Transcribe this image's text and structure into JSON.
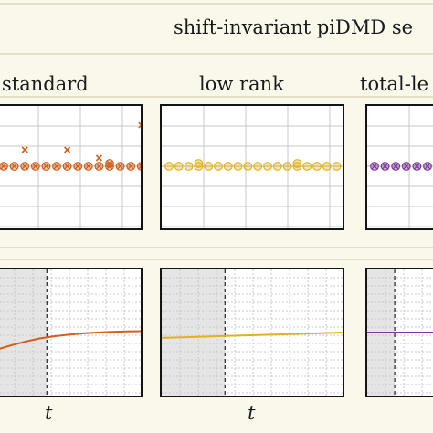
{
  "figure": {
    "title": "shift-invariant piDMD se",
    "columns": [
      "standard",
      "low rank",
      "total-le"
    ],
    "time_label": "t"
  },
  "colors": {
    "background": "#faf8ea",
    "divider": "#e4e0c8",
    "standard": "#d35f1b",
    "low_rank": "#e2b21c",
    "total_least_squares": "#7a3a99",
    "shaded_region": "#e5e5e5",
    "grid": "#c8c8c8"
  },
  "chart_data": [
    {
      "type": "scatter",
      "panel": "eigenvalues",
      "column": "standard",
      "marker_style": "circle-with-x",
      "baseline": {
        "y": 0,
        "x": [
          0,
          1,
          2,
          3,
          4,
          5,
          6,
          7,
          8,
          9,
          10,
          11,
          12,
          13
        ]
      },
      "outliers": [
        {
          "x": 2,
          "y": 0.3
        },
        {
          "x": 6,
          "y": 0.3
        },
        {
          "x": 9,
          "y": 0.15
        },
        {
          "x": 10,
          "y": 0.05
        },
        {
          "x": 13,
          "y": 0.75
        }
      ],
      "grid": true
    },
    {
      "type": "scatter",
      "panel": "eigenvalues",
      "column": "low rank",
      "marker_style": "circle",
      "baseline": {
        "y": 0,
        "x": [
          0,
          1,
          2,
          3,
          4,
          5,
          6,
          7,
          8,
          9,
          10,
          11,
          12,
          13,
          14,
          15,
          16,
          17
        ]
      },
      "outliers": [
        {
          "x": 3,
          "y": 0.05
        },
        {
          "x": 13,
          "y": 0.05
        }
      ],
      "grid": true
    },
    {
      "type": "scatter",
      "panel": "eigenvalues",
      "column": "total-le",
      "marker_style": "circle-with-x",
      "baseline": {
        "y": 0,
        "x": [
          0,
          1,
          2,
          3,
          4,
          5
        ]
      },
      "outliers": [],
      "grid": true
    },
    {
      "type": "line",
      "panel": "time-series",
      "column": "standard",
      "x": [
        0,
        0.1,
        0.2,
        0.3,
        0.4,
        0.5,
        0.6,
        0.7,
        0.8,
        0.9,
        1.0
      ],
      "y": [
        0.34,
        0.38,
        0.415,
        0.445,
        0.465,
        0.48,
        0.492,
        0.5,
        0.506,
        0.51,
        0.513
      ],
      "ylim": [
        0,
        1
      ],
      "shaded_until": 0.35,
      "grid": true
    },
    {
      "type": "line",
      "panel": "time-series",
      "column": "low rank",
      "x": [
        0,
        0.2,
        0.4,
        0.6,
        0.8,
        1.0
      ],
      "y": [
        0.45,
        0.46,
        0.47,
        0.48,
        0.49,
        0.5
      ],
      "ylim": [
        0,
        1
      ],
      "shaded_until": 0.35,
      "grid": true
    },
    {
      "type": "line",
      "panel": "time-series",
      "column": "total-le",
      "x": [
        0,
        1.0
      ],
      "y": [
        0.5,
        0.5
      ],
      "ylim": [
        0,
        1
      ],
      "shaded_until": 0.35,
      "grid": true
    }
  ]
}
